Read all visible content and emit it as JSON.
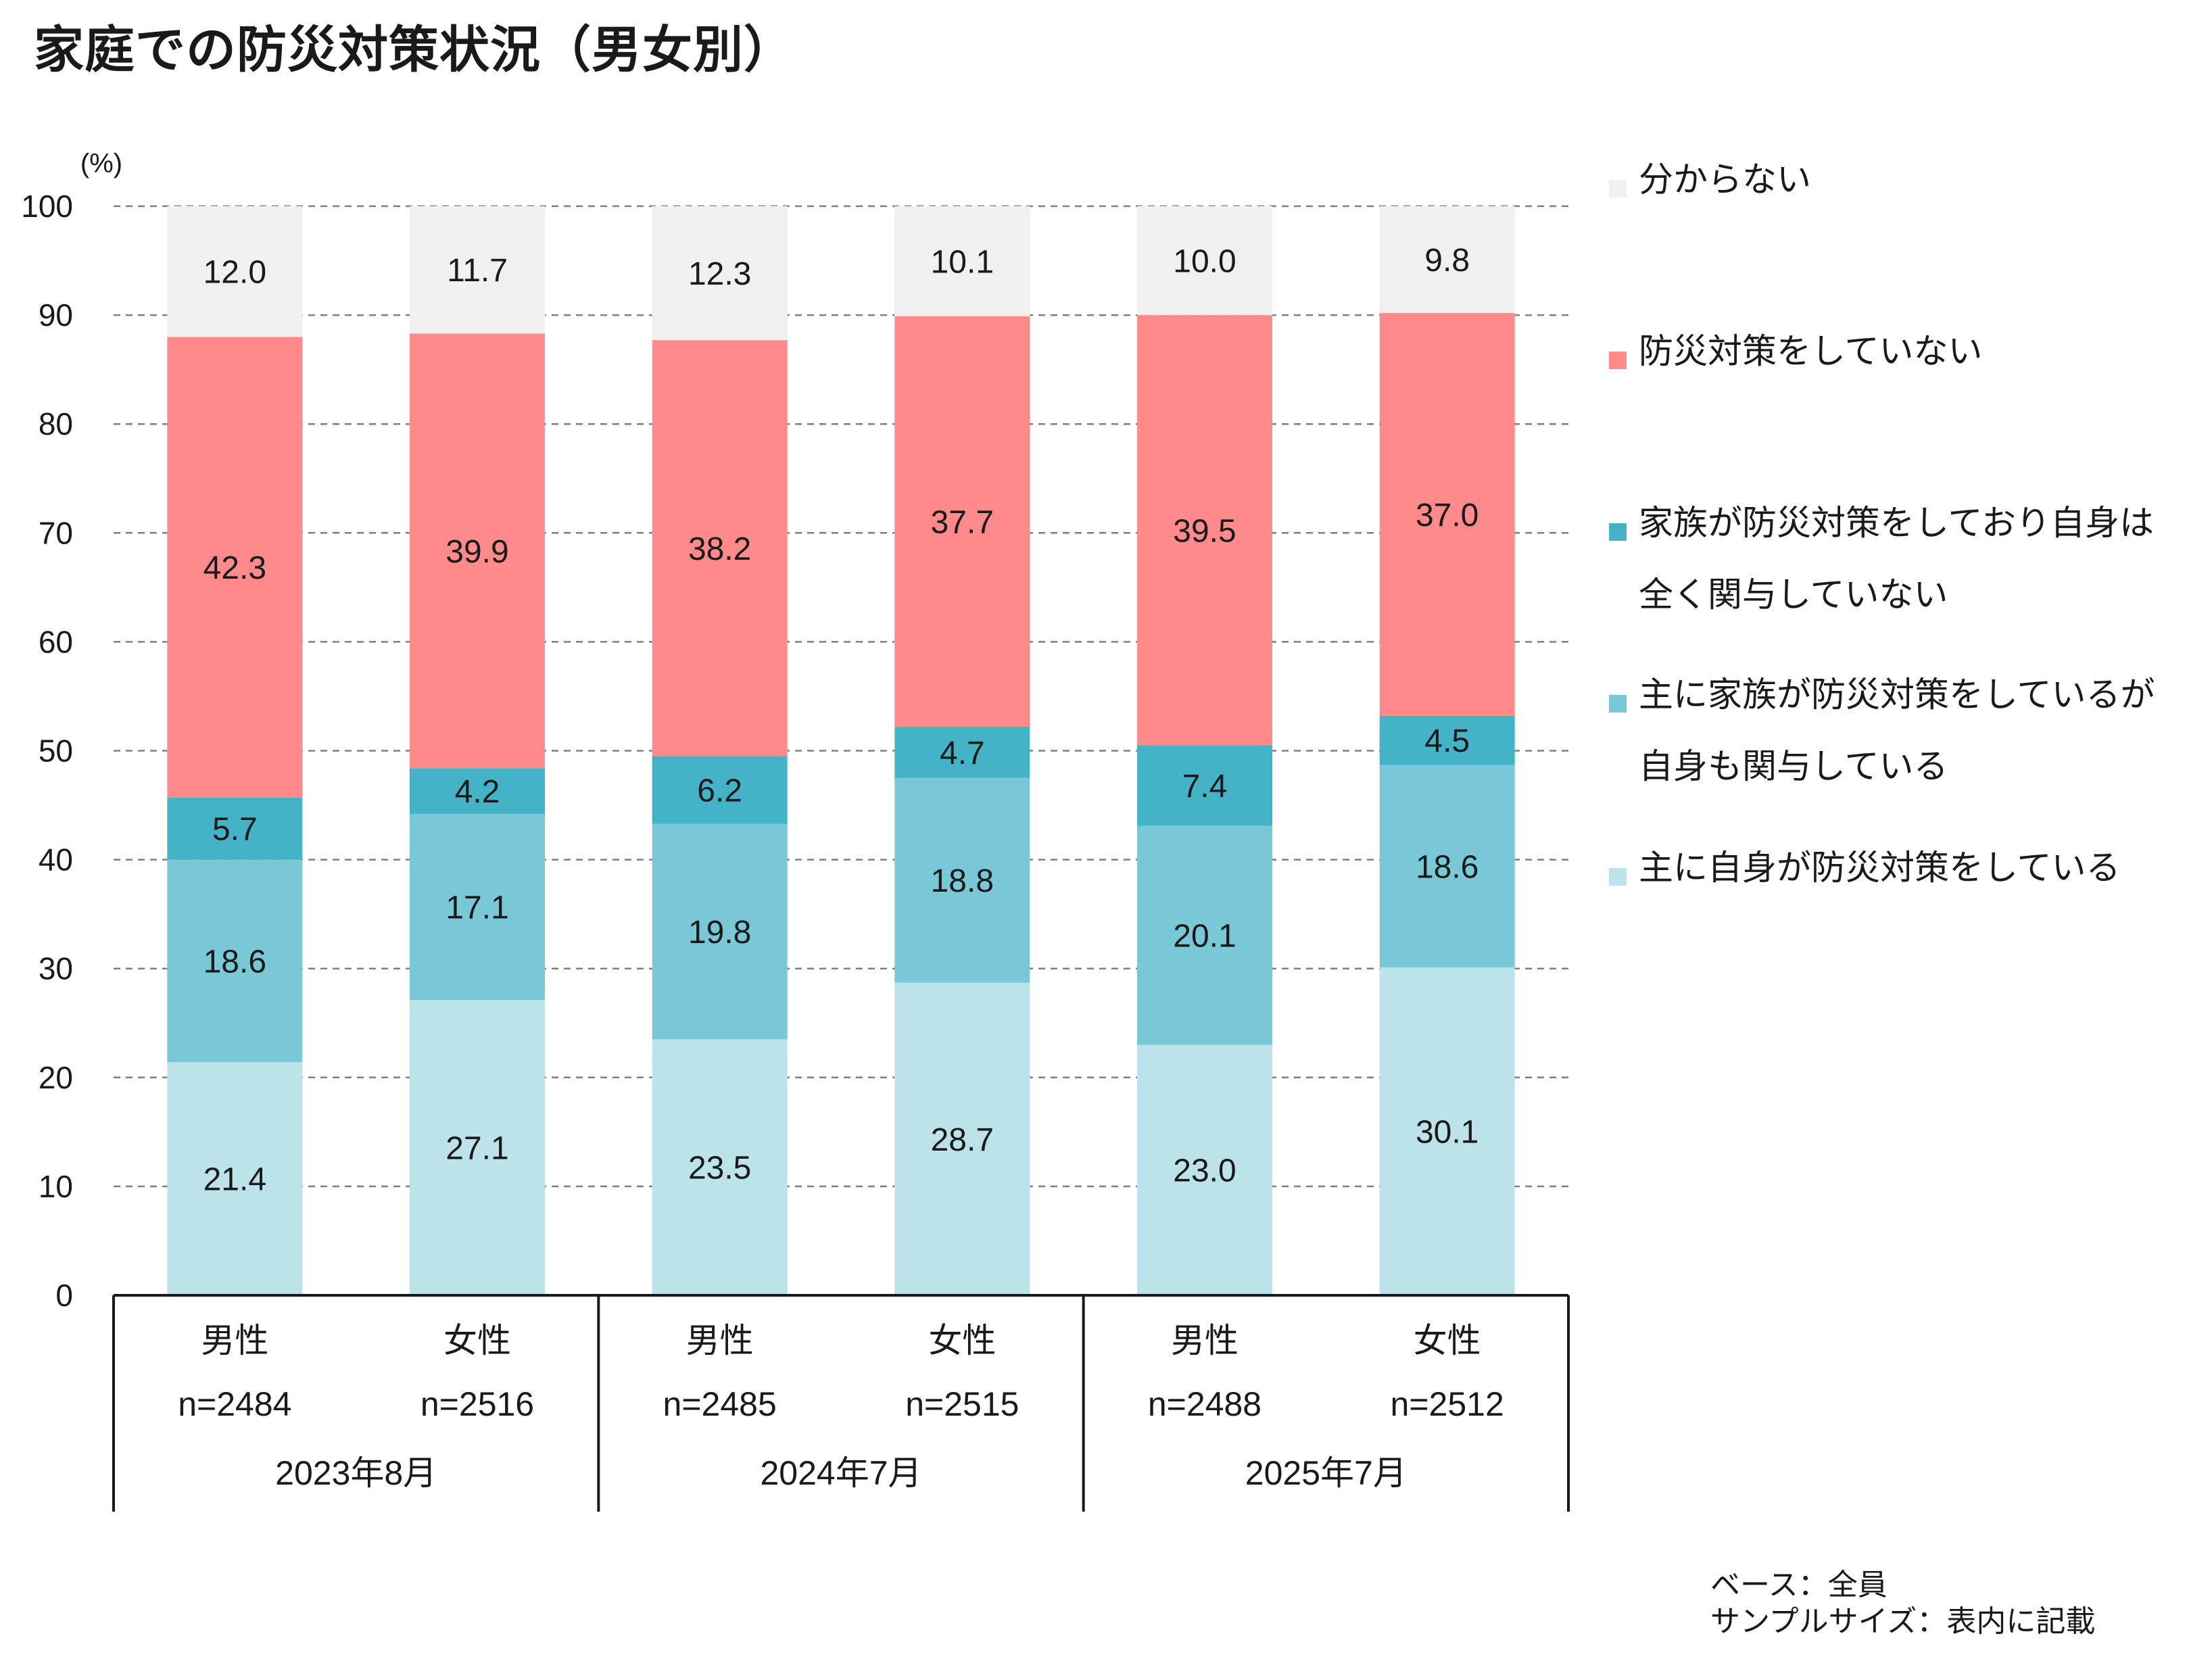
{
  "title": "家庭での防災対策状況（男女別）",
  "y_unit": "(%)",
  "footnotes": {
    "base": "ベース：全員",
    "sample": "サンプルサイズ：表内に記載"
  },
  "colors": {
    "self_only": "#bde3ea",
    "mainly_family_self_involved": "#78c8d7",
    "family_no_involvement": "#45b3c7",
    "not_doing": "#fe8a8b",
    "unknown": "#f0f0f0"
  },
  "chart_data": {
    "type": "bar",
    "stacked": true,
    "ylim": [
      0,
      100
    ],
    "yticks": [
      0,
      10,
      20,
      30,
      40,
      50,
      60,
      70,
      80,
      90,
      100
    ],
    "grid": true,
    "legend_position": "right",
    "categories": [
      {
        "label": "男性",
        "n": "n=2484",
        "group": "2023年8月"
      },
      {
        "label": "女性",
        "n": "n=2516",
        "group": "2023年8月"
      },
      {
        "label": "男性",
        "n": "n=2485",
        "group": "2024年7月"
      },
      {
        "label": "女性",
        "n": "n=2515",
        "group": "2024年7月"
      },
      {
        "label": "男性",
        "n": "n=2488",
        "group": "2025年7月"
      },
      {
        "label": "女性",
        "n": "n=2512",
        "group": "2025年7月"
      }
    ],
    "groups": [
      "2023年8月",
      "2024年7月",
      "2025年7月"
    ],
    "series": [
      {
        "name": "主に自身が防災対策をしている",
        "color_key": "self_only",
        "values": [
          21.4,
          27.1,
          23.5,
          28.7,
          23.0,
          30.1
        ]
      },
      {
        "name": "主に家族が防災対策をしているが自身も関与している",
        "color_key": "mainly_family_self_involved",
        "values": [
          18.6,
          17.1,
          19.8,
          18.8,
          20.1,
          18.6
        ]
      },
      {
        "name": "家族が防災対策をしており自身は全く関与していない",
        "color_key": "family_no_involvement",
        "values": [
          5.7,
          4.2,
          6.2,
          4.7,
          7.4,
          4.5
        ]
      },
      {
        "name": "防災対策をしていない",
        "color_key": "not_doing",
        "values": [
          42.3,
          39.9,
          38.2,
          37.7,
          39.5,
          37.0
        ]
      },
      {
        "name": "分からない",
        "color_key": "unknown",
        "values": [
          12.0,
          11.7,
          12.3,
          10.1,
          10.0,
          9.8
        ]
      }
    ],
    "labels": [
      [
        "21.4",
        "27.1",
        "23.5",
        "28.7",
        "23.0",
        "30.1"
      ],
      [
        "18.6",
        "17.1",
        "19.8",
        "18.8",
        "20.1",
        "18.6"
      ],
      [
        "5.7",
        "4.2",
        "6.2",
        "4.7",
        "7.4",
        "4.5"
      ],
      [
        "42.3",
        "39.9",
        "38.2",
        "37.7",
        "39.5",
        "37.0"
      ],
      [
        "12.0",
        "11.7",
        "12.3",
        "10.1",
        "10.0",
        "9.8"
      ]
    ],
    "legend": [
      {
        "lines": [
          "分からない"
        ],
        "color_key": "unknown"
      },
      {
        "lines": [
          "防災対策をしていない"
        ],
        "color_key": "not_doing"
      },
      {
        "lines": [
          "家族が防災対策をしており自身は",
          "全く関与していない"
        ],
        "color_key": "family_no_involvement"
      },
      {
        "lines": [
          "主に家族が防災対策をしているが",
          "自身も関与している"
        ],
        "color_key": "mainly_family_self_involved"
      },
      {
        "lines": [
          "主に自身が防災対策をしている"
        ],
        "color_key": "self_only"
      }
    ]
  }
}
